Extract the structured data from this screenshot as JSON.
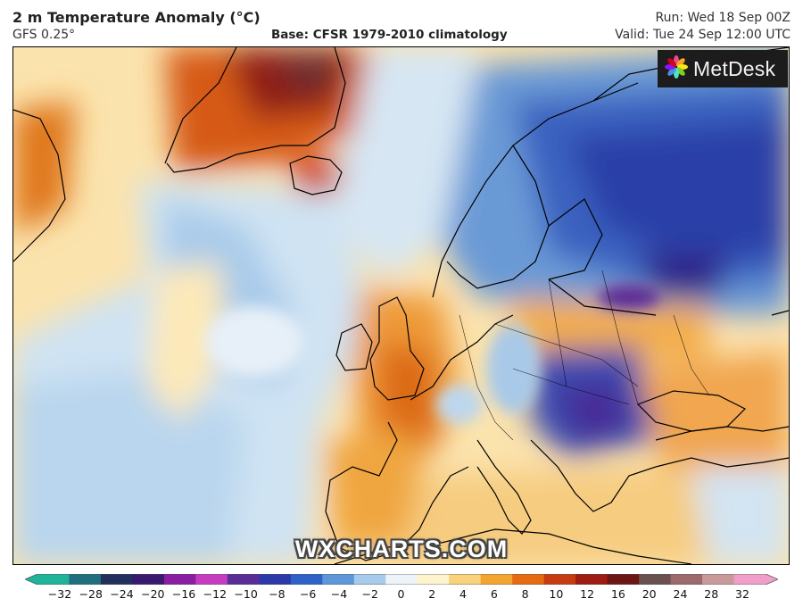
{
  "header": {
    "title": "2 m Temperature Anomaly (°C)",
    "model": "GFS 0.25°",
    "base": "Base: CFSR 1979-2010 climatology",
    "run": "Run: Wed 18 Sep 00Z",
    "valid": "Valid: Tue 24 Sep 12:00 UTC"
  },
  "brand": {
    "name": "MetDesk",
    "icon": "metdesk-flower-logo-icon"
  },
  "watermark": "WXCHARTS.COM",
  "colorbar": {
    "ticks": [
      "−32",
      "−28",
      "−24",
      "−20",
      "−16",
      "−12",
      "−10",
      "−8",
      "−6",
      "−4",
      "−2",
      "0",
      "2",
      "4",
      "6",
      "8",
      "10",
      "12",
      "16",
      "20",
      "24",
      "28",
      "32"
    ],
    "colors": [
      "#1fb39a",
      "#1f6f7f",
      "#22305e",
      "#3a1a6e",
      "#8a1ea0",
      "#c63cc0",
      "#5a2c96",
      "#2c3aa8",
      "#2f62c6",
      "#5e97d8",
      "#a7cbea",
      "#eef3f8",
      "#fdf3cc",
      "#f8d27c",
      "#f3a532",
      "#e66a10",
      "#c83a10",
      "#9e1c12",
      "#6c1616",
      "#6a5050",
      "#9c6a6a",
      "#c89a9a",
      "#f0a0c8"
    ],
    "low_color": "#1fb39a",
    "high_color": "#f0a0c8"
  }
}
